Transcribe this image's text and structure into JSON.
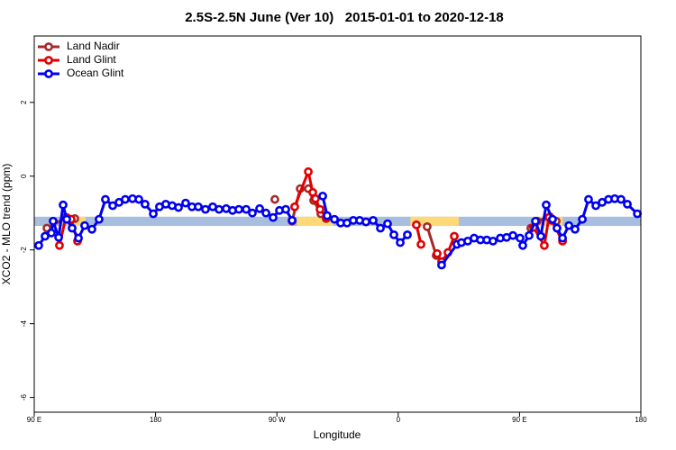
{
  "chart_data": {
    "type": "line",
    "title": "2.5S-2.5N June (Ver 10)   2015-01-01 to 2020-12-18",
    "xlabel": "Longitude",
    "ylabel": "XCO2 - MLO trend (ppm)",
    "xlim": [
      90,
      540
    ],
    "ylim": [
      -6.4,
      3.8
    ],
    "xticks": [
      {
        "value": 90,
        "label": "90 E"
      },
      180,
      {
        "value": 270,
        "label": "90 W"
      },
      {
        "value": 360,
        "label": "0"
      },
      {
        "value": 450,
        "label": "90 E"
      },
      {
        "value": 540,
        "label": "180"
      }
    ],
    "yticks": [
      -6,
      -4,
      -2,
      0,
      2
    ],
    "legend": "top-left",
    "band": {
      "ylim": [
        -1.35,
        -1.1
      ],
      "color": "#a7bedf",
      "land_color": "#fed976",
      "land_ranges": [
        [
          114,
          128
        ],
        [
          285,
          312
        ],
        [
          369,
          405
        ],
        [
          459,
          482
        ]
      ]
    },
    "series": [
      {
        "name": "Land Nadir",
        "color": "#a52a2a",
        "x": [
          99.4,
          114.1,
          120.1,
          null,
          268.5,
          null,
          281.3,
          287.3,
          293.3,
          297.3,
          302.6,
          306.6,
          null,
          381.5,
          388.2,
          null,
          458.4,
          463.1,
          472.5,
          477.2
        ],
        "values": [
          -1.41,
          -1.12,
          -1.15,
          null,
          -0.63,
          null,
          -1.22,
          -0.34,
          -0.34,
          -0.66,
          -1.02,
          -1.15,
          null,
          -1.37,
          -2.15,
          null,
          -1.41,
          -1.22,
          -1.1,
          -1.22
        ]
      },
      {
        "name": "Land Glint",
        "color": "#e00000",
        "x": [
          108.7,
          113.4,
          117.4,
          122.1,
          null,
          283.2,
          293.3,
          296.6,
          298.6,
          302.0,
          306.6,
          null,
          373.5,
          376.9,
          null,
          388.9,
          392.2,
          396.9,
          401.6,
          null,
          460.4,
          468.4,
          471.8,
          473.8,
          481.9
        ],
        "values": [
          -1.88,
          -1.12,
          -1.17,
          -1.76,
          null,
          -0.83,
          0.12,
          -0.44,
          -0.61,
          -0.9,
          -1.12,
          null,
          -1.32,
          -1.85,
          null,
          -2.1,
          -2.32,
          -2.07,
          -1.63,
          null,
          -1.39,
          -1.88,
          -1.12,
          -1.2,
          -1.76
        ]
      },
      {
        "name": "Ocean Glint",
        "color": "#0000ee",
        "x": [
          93.3,
          98.0,
          102.7,
          104.0,
          108.1,
          111.4,
          114.1,
          118.1,
          122.8,
          127.4,
          132.8,
          138.1,
          142.8,
          148.2,
          152.9,
          157.5,
          162.9,
          167.6,
          172.2,
          178.3,
          182.9,
          187.6,
          192.3,
          197.0,
          202.3,
          207.0,
          211.7,
          217.0,
          222.4,
          227.1,
          232.4,
          237.1,
          241.8,
          247.2,
          251.8,
          257.2,
          261.9,
          267.2,
          271.9,
          276.6,
          281.3,
          null,
          304.0,
          307.3,
          312.7,
          317.3,
          322.0,
          326.7,
          331.4,
          336.1,
          341.4,
          346.8,
          352.1,
          356.8,
          361.5,
          366.8,
          null,
          392.2,
          403.6,
          406.9,
          411.6,
          416.3,
          421.0,
          425.7,
          430.3,
          435.7,
          440.4,
          445.1,
          450.4,
          452.4,
          457.1,
          461.8,
          465.8,
          469.8,
          474.5,
          477.8,
          481.9,
          486.6,
          491.2,
          496.6,
          501.2,
          506.6,
          511.3,
          516.0,
          520.6,
          525.3,
          530.0,
          537.4
        ],
        "values": [
          -1.88,
          -1.63,
          -1.54,
          -1.22,
          -1.66,
          -0.78,
          -1.17,
          -1.41,
          -1.68,
          -1.34,
          -1.44,
          -1.17,
          -0.63,
          -0.8,
          -0.71,
          -0.63,
          -0.61,
          -0.63,
          -0.76,
          -1.02,
          -0.83,
          -0.76,
          -0.8,
          -0.85,
          -0.73,
          -0.83,
          -0.83,
          -0.9,
          -0.83,
          -0.9,
          -0.88,
          -0.93,
          -0.9,
          -0.9,
          -1.0,
          -0.88,
          -1.0,
          -1.12,
          -0.93,
          -0.9,
          -1.2,
          null,
          -0.54,
          -1.07,
          -1.17,
          -1.27,
          -1.27,
          -1.2,
          -1.2,
          -1.24,
          -1.2,
          -1.41,
          -1.29,
          -1.59,
          -1.8,
          -1.59,
          null,
          -2.41,
          -1.85,
          -1.8,
          -1.76,
          -1.68,
          -1.73,
          -1.73,
          -1.76,
          -1.68,
          -1.66,
          -1.61,
          -1.68,
          -1.88,
          -1.61,
          -1.22,
          -1.63,
          -0.78,
          -1.17,
          -1.41,
          -1.68,
          -1.34,
          -1.44,
          -1.17,
          -0.63,
          -0.8,
          -0.71,
          -0.63,
          -0.61,
          -0.63,
          -0.76,
          -1.02
        ]
      }
    ]
  }
}
